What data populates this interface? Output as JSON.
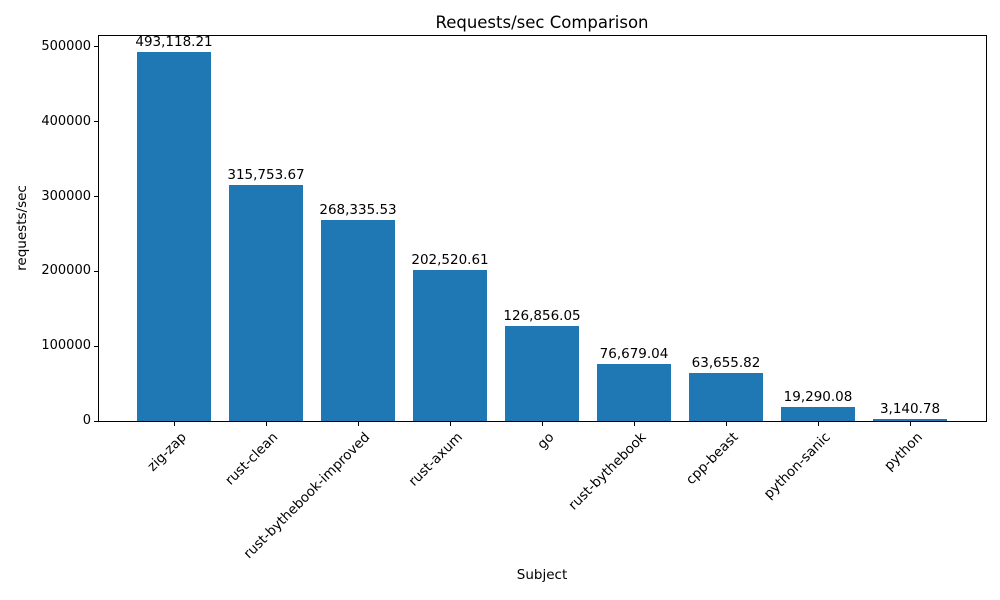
{
  "chart_data": {
    "type": "bar",
    "title": "Requests/sec Comparison",
    "xlabel": "Subject",
    "ylabel": "requests/sec",
    "categories": [
      "zig-zap",
      "rust-clean",
      "rust-bythebook-improved",
      "rust-axum",
      "go",
      "rust-bythebook",
      "cpp-beast",
      "python-sanic",
      "python"
    ],
    "values": [
      493118.21,
      315753.67,
      268335.53,
      202520.61,
      126856.05,
      76679.04,
      63655.82,
      19290.08,
      3140.78
    ],
    "bar_labels": [
      "493,118.21",
      "315,753.67",
      "268,335.53",
      "202,520.61",
      "126,856.05",
      "76,679.04",
      "63,655.82",
      "19,290.08",
      "3,140.78"
    ],
    "y_ticks": [
      0,
      100000,
      200000,
      300000,
      400000,
      500000
    ],
    "y_tick_labels": [
      "0",
      "100000",
      "200000",
      "300000",
      "400000",
      "500000"
    ],
    "ylim": [
      0,
      516000
    ],
    "bar_color": "#1f77b4",
    "text_color": "#000000",
    "grid": false,
    "legend": null,
    "x_tick_rotation": 45
  }
}
